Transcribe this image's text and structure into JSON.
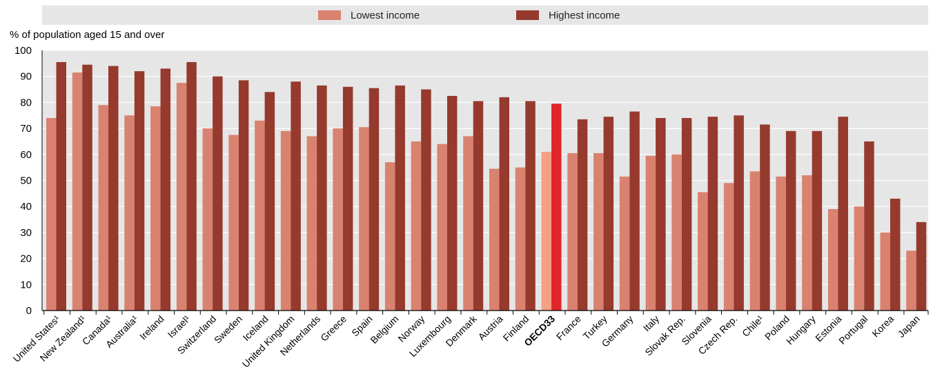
{
  "legend": {
    "lowest_label": "Lowest income",
    "highest_label": "Highest income"
  },
  "colors": {
    "lowest": "#d9826f",
    "highest": "#963a2e",
    "oecd_lowest": "#f3a083",
    "oecd_highest": "#e0262a",
    "legend_band": "#e6e6e6",
    "grid": "#ffffff"
  },
  "chart_data": {
    "type": "bar",
    "title": "",
    "xlabel": "",
    "ylabel": "% of population aged 15 and over",
    "ylim": [
      0,
      100
    ],
    "yticks": [
      0,
      10,
      20,
      30,
      40,
      50,
      60,
      70,
      80,
      90,
      100
    ],
    "grid": true,
    "legend_position": "top",
    "highlight_category": "OECD33",
    "categories": [
      "United States¹",
      "New Zealand¹",
      "Canada¹",
      "Australia¹",
      "Ireland",
      "Israel¹",
      "Switzerland",
      "Sweden",
      "Iceland",
      "United Kingdom",
      "Netherlands",
      "Greece",
      "Spain",
      "Belgium",
      "Norway",
      "Luxembourg",
      "Denmark",
      "Austria",
      "Finland",
      "OECD33",
      "France",
      "Turkey",
      "Germany",
      "Italy",
      "Slovak Rep.",
      "Slovenia",
      "Czech Rep.",
      "Chile¹",
      "Poland",
      "Hungary",
      "Estonia",
      "Portugal",
      "Korea",
      "Japan"
    ],
    "series": [
      {
        "name": "Lowest income",
        "values": [
          74,
          91.5,
          79,
          75,
          78.5,
          87.5,
          70,
          67.5,
          73,
          69,
          67,
          70,
          70.5,
          57,
          65,
          64,
          67,
          54.5,
          55,
          61,
          60.5,
          60.5,
          51.5,
          59.5,
          60,
          45.5,
          49,
          53.5,
          51.5,
          52,
          39,
          40,
          30,
          23
        ]
      },
      {
        "name": "Highest income",
        "values": [
          95.5,
          94.5,
          94,
          92,
          93,
          95.5,
          90,
          88.5,
          84,
          88,
          86.5,
          86,
          85.5,
          86.5,
          85,
          82.5,
          80.5,
          82,
          80.5,
          79.5,
          73.5,
          74.5,
          76.5,
          74,
          74,
          74.5,
          75,
          71.5,
          69,
          69,
          74.5,
          65,
          43,
          34
        ]
      }
    ]
  }
}
